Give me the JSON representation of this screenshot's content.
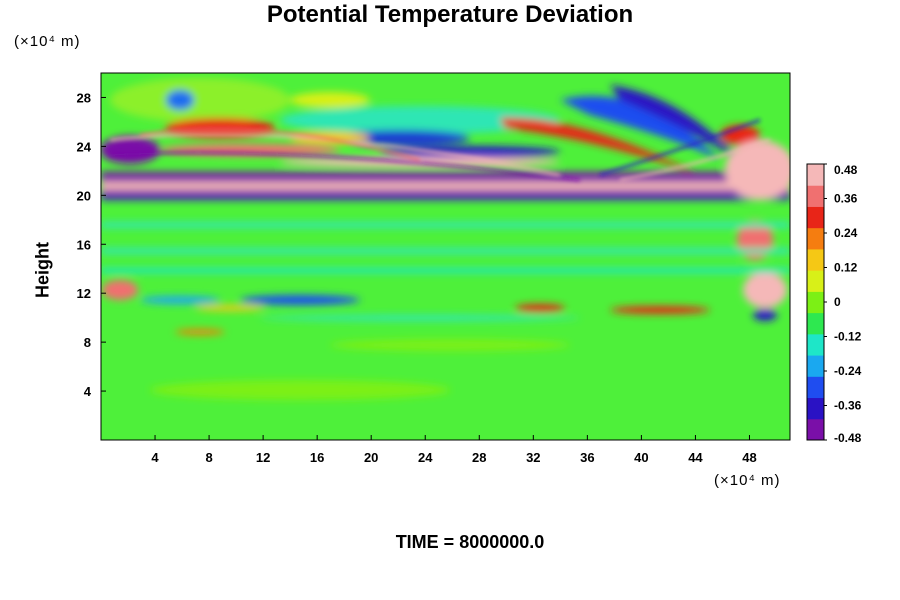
{
  "chart_data": {
    "type": "heatmap",
    "title": "Potential Temperature Deviation",
    "xlabel": "",
    "ylabel": "Height",
    "x_unit_label": "(×10⁴ m)",
    "y_unit_label": "(×10⁴ m)",
    "x_ticks": [
      4,
      8,
      12,
      16,
      20,
      24,
      28,
      32,
      36,
      40,
      44,
      48
    ],
    "y_ticks": [
      4,
      8,
      12,
      16,
      20,
      24,
      28
    ],
    "xlim": [
      0,
      51
    ],
    "ylim": [
      0,
      30
    ],
    "colorbar": {
      "ticks": [
        "0.48",
        "0.36",
        "0.24",
        "0.12",
        "0",
        "-0.12",
        "-0.24",
        "-0.36",
        "-0.48"
      ],
      "range": [
        -0.48,
        0.48
      ],
      "colors": [
        "#7a0fa8",
        "#2a12c4",
        "#1f4df0",
        "#1aa8f0",
        "#1ee6c8",
        "#2ee850",
        "#7cf015",
        "#d8f018",
        "#f5c815",
        "#f57d10",
        "#e82518",
        "#f07070",
        "#f5b8b8"
      ]
    },
    "annotation": "TIME = 8000000.0"
  }
}
